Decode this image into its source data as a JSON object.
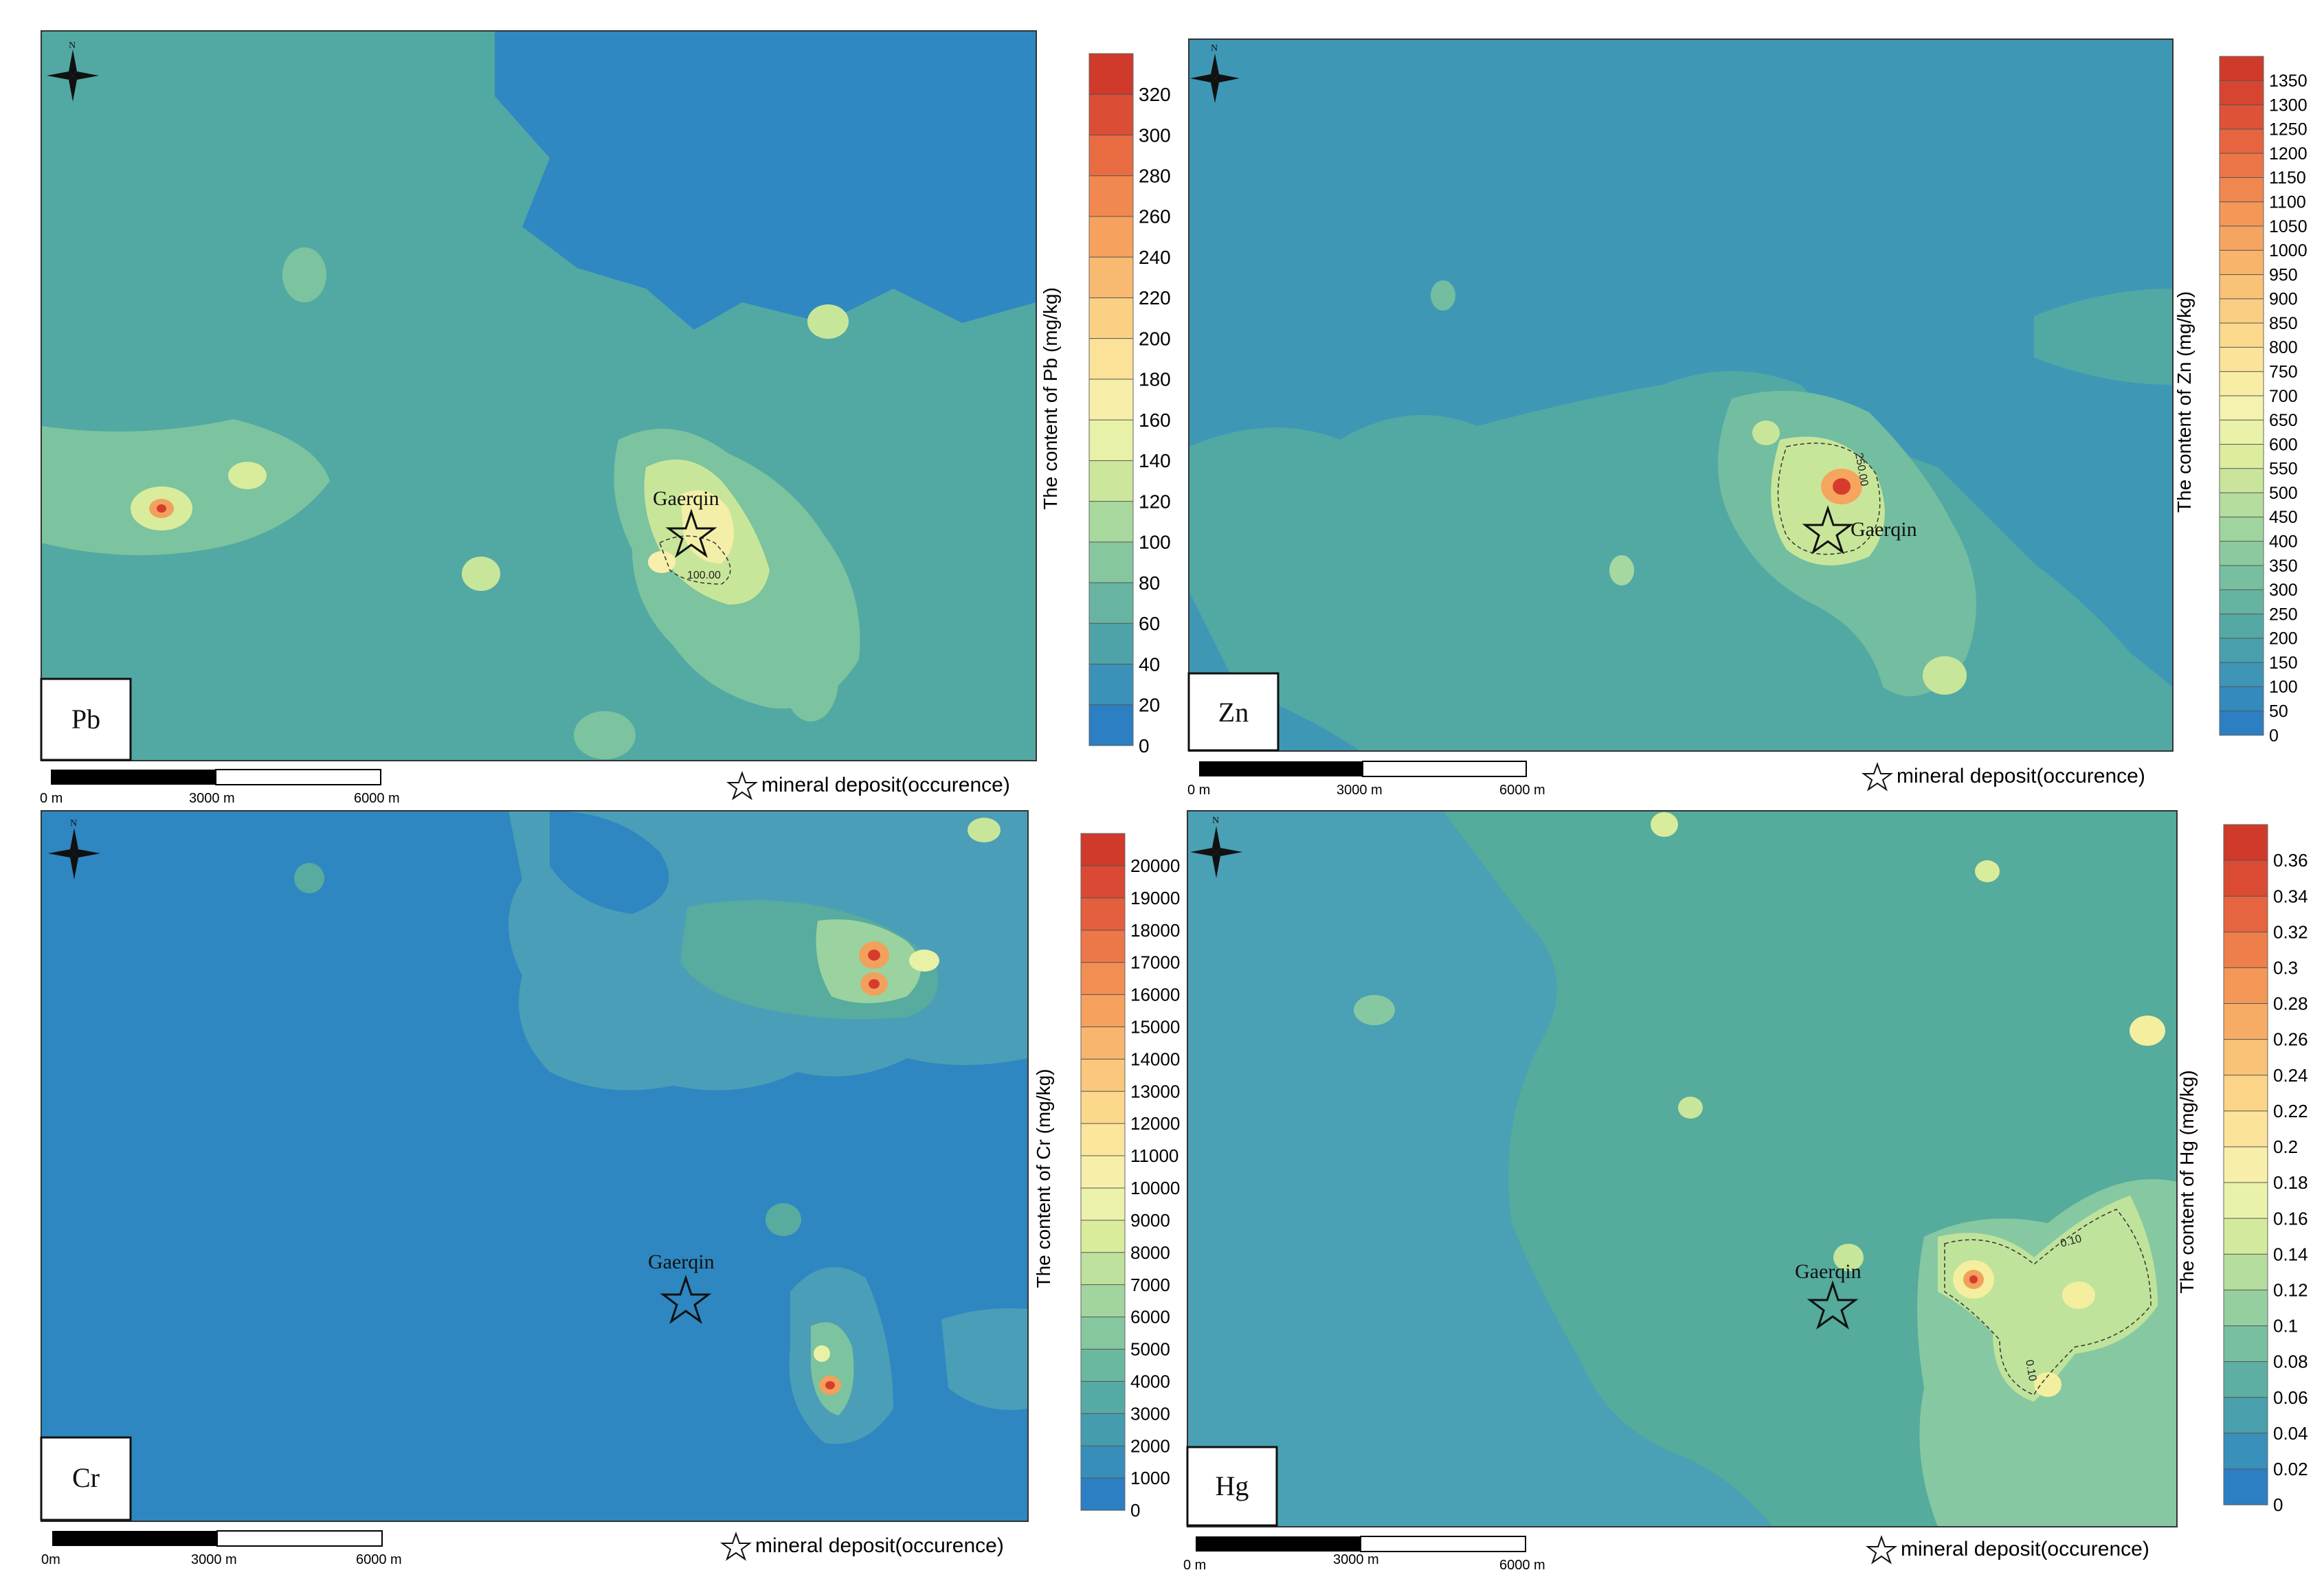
{
  "panels": [
    {
      "id": "pb",
      "element": "Pb",
      "colorbar_label": "The content of Pb (mg/kg)",
      "ticks": [
        "0",
        "20",
        "40",
        "60",
        "80",
        "100",
        "120",
        "140",
        "160",
        "180",
        "200",
        "220",
        "240",
        "260",
        "280",
        "300",
        "320"
      ],
      "contour_labels": [
        "100.00"
      ],
      "deposit_label": "Gaerqin",
      "legend": "mineral deposit(occurence)",
      "scale": [
        "0 m",
        "3000 m",
        "6000 m"
      ],
      "north": "N"
    },
    {
      "id": "zn",
      "element": "Zn",
      "colorbar_label": "The content of Zn (mg/kg)",
      "ticks": [
        "0",
        "50",
        "100",
        "150",
        "200",
        "250",
        "300",
        "350",
        "400",
        "450",
        "500",
        "550",
        "600",
        "650",
        "700",
        "750",
        "800",
        "850",
        "900",
        "950",
        "1000",
        "1050",
        "1100",
        "1150",
        "1200",
        "1250",
        "1300",
        "1350"
      ],
      "contour_labels": [
        "250.00"
      ],
      "deposit_label": "Gaerqin",
      "legend": "mineral deposit(occurence)",
      "scale": [
        "0 m",
        "3000 m",
        "6000 m"
      ],
      "north": "N"
    },
    {
      "id": "cr",
      "element": "Cr",
      "colorbar_label": "The content of Cr (mg/kg)",
      "ticks": [
        "0",
        "1000",
        "2000",
        "3000",
        "4000",
        "5000",
        "6000",
        "7000",
        "8000",
        "9000",
        "10000",
        "11000",
        "12000",
        "13000",
        "14000",
        "15000",
        "16000",
        "17000",
        "18000",
        "19000",
        "20000"
      ],
      "contour_labels": [],
      "deposit_label": "Gaerqin",
      "legend": "mineral deposit(occurence)",
      "scale": [
        "0m",
        "3000 m",
        "6000 m"
      ],
      "north": "N"
    },
    {
      "id": "hg",
      "element": "Hg",
      "colorbar_label": "The content of Hg (mg/kg)",
      "ticks": [
        "0",
        "0.02",
        "0.04",
        "0.06",
        "0.08",
        "0.1",
        "0.12",
        "0.14",
        "0.16",
        "0.18",
        "0.2",
        "0.22",
        "0.24",
        "0.26",
        "0.28",
        "0.3",
        "0.32",
        "0.34",
        "0.36"
      ],
      "contour_labels": [
        "0.10",
        "0.10"
      ],
      "deposit_label": "Gaerqin",
      "legend": "mineral deposit(occurence)",
      "scale": [
        "0 m",
        "3000 m",
        "6000 m"
      ],
      "north": "N"
    }
  ],
  "colors": {
    "low": "#2d85bf",
    "lowmid": "#4aa0b4",
    "mid": "#52a99e",
    "midhigh": "#8ccc9e",
    "green_yellow": "#d7ea9b",
    "yellow": "#fbf2b2",
    "orange": "#f6a25c",
    "red": "#d73b2c"
  }
}
